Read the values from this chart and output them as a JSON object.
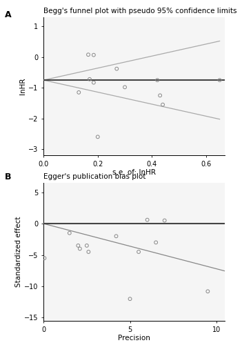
{
  "panel_A": {
    "title": "Begg's funnel plot with pseudo 95% confidence limits",
    "xlabel": "s.e. of: lnHR",
    "ylabel": "lnHR",
    "xlim": [
      0,
      0.67
    ],
    "ylim": [
      -3.2,
      1.3
    ],
    "xticks": [
      0,
      0.2,
      0.4,
      0.6
    ],
    "yticks": [
      -3,
      -2,
      -1,
      0,
      1
    ],
    "points_x": [
      0.13,
      0.165,
      0.185,
      0.17,
      0.185,
      0.2,
      0.27,
      0.3,
      0.42,
      0.43,
      0.44,
      0.65
    ],
    "points_y": [
      -1.15,
      0.08,
      0.07,
      -0.72,
      -0.83,
      -2.6,
      -0.38,
      -0.98,
      -0.75,
      -1.25,
      -1.55,
      -0.75
    ],
    "meta_lnHR": -0.75,
    "funnel_slope": 1.96,
    "point_color": "#888888",
    "hline_color": "#444444",
    "ci_color": "#aaaaaa"
  },
  "panel_B": {
    "title": "Egger's publication bias plot",
    "xlabel": "Precision",
    "ylabel": "Standardized effect",
    "xlim": [
      0,
      10.5
    ],
    "ylim": [
      -15.5,
      6.5
    ],
    "xticks": [
      0,
      5,
      10
    ],
    "yticks": [
      -15,
      -10,
      -5,
      0,
      5
    ],
    "points_x": [
      0.05,
      1.5,
      2.0,
      2.1,
      2.5,
      2.6,
      4.2,
      5.0,
      5.5,
      6.0,
      6.5,
      7.0,
      9.5
    ],
    "points_y": [
      -5.5,
      -1.5,
      -3.5,
      -4.0,
      -3.5,
      -4.5,
      -2.0,
      -12.0,
      -4.5,
      0.6,
      -3.0,
      0.5,
      -10.8
    ],
    "ref_y": 0.0,
    "reg_intercept": 0.0,
    "reg_slope": -0.72,
    "point_color": "#888888",
    "hline_color": "#444444",
    "reg_color": "#888888"
  },
  "label_fontsize": 9,
  "title_fontsize": 7.5,
  "tick_fontsize": 7,
  "axis_label_fontsize": 7.5,
  "bg_color": "#f5f5f5"
}
